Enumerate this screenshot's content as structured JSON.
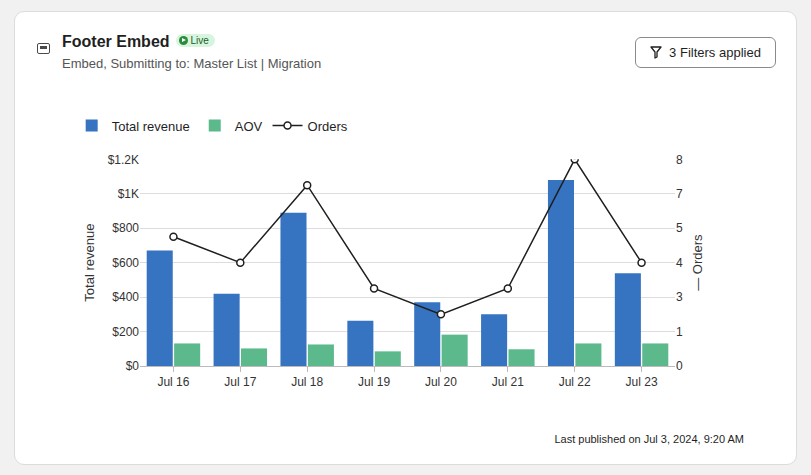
{
  "header": {
    "title": "Footer Embed",
    "badge": "Live",
    "subtitle": "Embed, Submitting to: Master List | Migration",
    "button": "3 Filters applied"
  },
  "footer": "Last published on Jul 3, 2024, 9:20 AM",
  "chart_data": {
    "type": "bar",
    "categories": [
      "Jul 16",
      "Jul 17",
      "Jul 18",
      "Jul 19",
      "Jul 20",
      "Jul 21",
      "Jul 22",
      "Jul 23"
    ],
    "series": [
      {
        "name": "Total revenue",
        "type": "bar",
        "color": "#3673c0",
        "values": [
          670,
          420,
          890,
          262,
          370,
          300,
          1080,
          538
        ]
      },
      {
        "name": "AOV",
        "type": "bar",
        "color": "#5bb98c",
        "values": [
          131,
          102,
          125,
          85,
          182,
          97,
          131,
          131
        ]
      },
      {
        "name": "Orders",
        "type": "line",
        "axis": "y2",
        "color": "#1f1f1f",
        "marker": "circle",
        "values": [
          5,
          4,
          7,
          3,
          2,
          3,
          8,
          4
        ]
      }
    ],
    "y_label": "Total revenue",
    "y2_label": "— Orders",
    "ylim": [
      0,
      1200
    ],
    "yticks": [
      {
        "value": 0,
        "label": "$0"
      },
      {
        "value": 200,
        "label": "$200"
      },
      {
        "value": 400,
        "label": "$400"
      },
      {
        "value": 600,
        "label": "$600"
      },
      {
        "value": 800,
        "label": "$800"
      },
      {
        "value": 1000,
        "label": "$1K"
      },
      {
        "value": 1200,
        "label": "$1.2K"
      }
    ],
    "y2lim": [
      0,
      8
    ],
    "y2ticks": [
      0,
      {
        "value": 1.333,
        "label": "1"
      },
      {
        "value": 2.667,
        "label": "3"
      },
      4,
      {
        "value": 5.333,
        "label": "5"
      },
      {
        "value": 6.667,
        "label": "7"
      },
      8
    ],
    "grid": true,
    "legend": "top-left"
  }
}
